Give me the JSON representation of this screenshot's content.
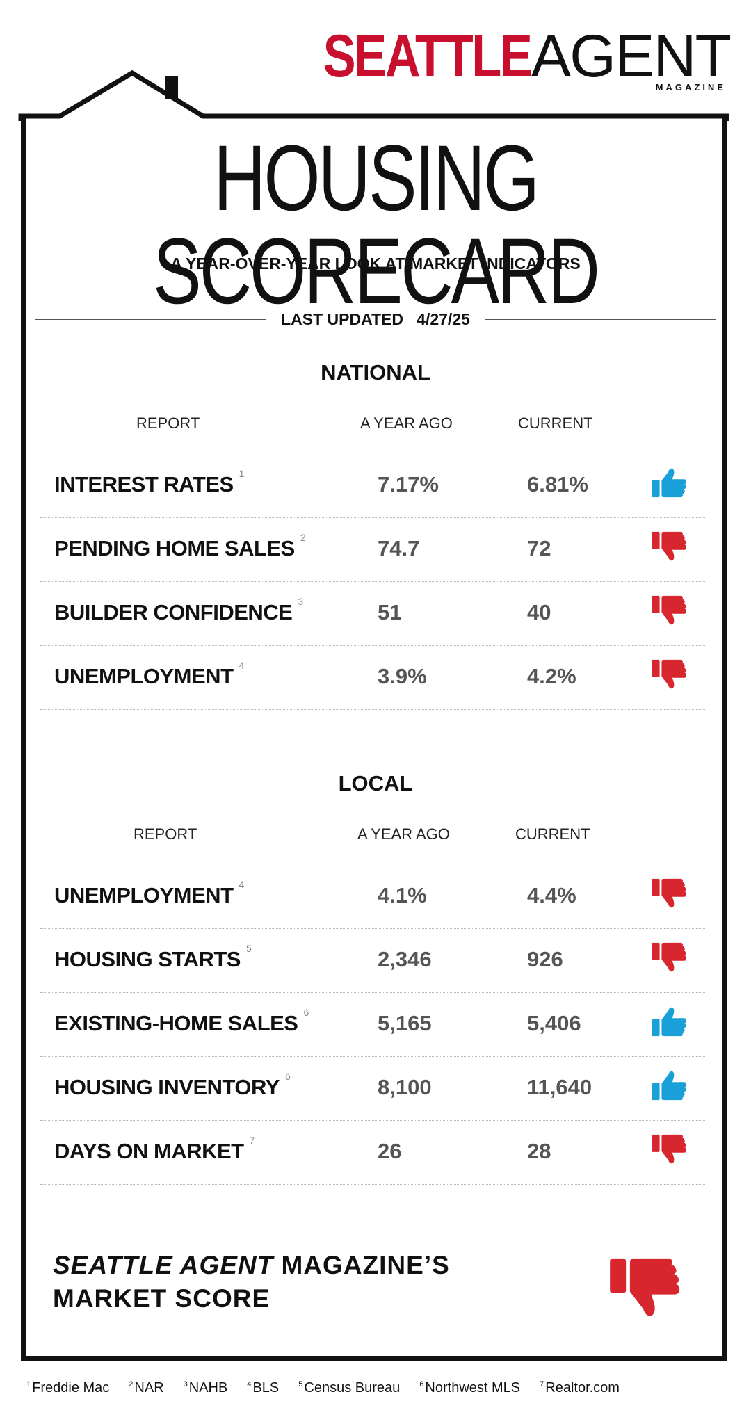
{
  "logo": {
    "word1": "SEATTLE",
    "word2": "AGENT",
    "tagline": "MAGAZINE"
  },
  "title": "HOUSING SCORECARD",
  "subtitle": "A YEAR-OVER-YEAR LOOK AT MARKET INDICATORS",
  "updated": {
    "label": "LAST UPDATED",
    "date": "4/27/25"
  },
  "colors": {
    "up": "#1aa0d8",
    "down": "#d7262e",
    "brand": "#c8102e"
  },
  "national": {
    "title": "NATIONAL",
    "headers": {
      "report": "REPORT",
      "ago": "A YEAR AGO",
      "current": "CURRENT"
    },
    "rows": [
      {
        "name": "INTEREST RATES",
        "note": "1",
        "ago": "7.17%",
        "current": "6.81%",
        "trend": "up"
      },
      {
        "name": "PENDING HOME SALES",
        "note": "2",
        "ago": "74.7",
        "current": "72",
        "trend": "down"
      },
      {
        "name": "BUILDER CONFIDENCE",
        "note": "3",
        "ago": "51",
        "current": "40",
        "trend": "down"
      },
      {
        "name": "UNEMPLOYMENT",
        "note": "4",
        "ago": "3.9%",
        "current": "4.2%",
        "trend": "down"
      }
    ]
  },
  "local": {
    "title": "LOCAL",
    "headers": {
      "report": "REPORT",
      "ago": "A YEAR AGO",
      "current": "CURRENT"
    },
    "rows": [
      {
        "name": "UNEMPLOYMENT",
        "note": "4",
        "ago": "4.1%",
        "current": "4.4%",
        "trend": "down"
      },
      {
        "name": "HOUSING STARTS",
        "note": "5",
        "ago": "2,346",
        "current": "926",
        "trend": "down"
      },
      {
        "name": "EXISTING-HOME SALES",
        "note": "6",
        "ago": "5,165",
        "current": "5,406",
        "trend": "up"
      },
      {
        "name": "HOUSING INVENTORY",
        "note": "6",
        "ago": "8,100",
        "current": "11,640",
        "trend": "up"
      },
      {
        "name": "DAYS ON MARKET",
        "note": "7",
        "ago": "26",
        "current": "28",
        "trend": "down"
      }
    ]
  },
  "score": {
    "italic": "SEATTLE AGENT",
    "rest": " MAGAZINE’S",
    "line2": "MARKET SCORE",
    "trend": "down"
  },
  "sources": [
    {
      "n": "1",
      "name": "Freddie Mac"
    },
    {
      "n": "2",
      "name": "NAR"
    },
    {
      "n": "3",
      "name": "NAHB"
    },
    {
      "n": "4",
      "name": "BLS"
    },
    {
      "n": "5",
      "name": "Census Bureau"
    },
    {
      "n": "6",
      "name": "Northwest MLS"
    },
    {
      "n": "7",
      "name": "Realtor.com"
    }
  ]
}
